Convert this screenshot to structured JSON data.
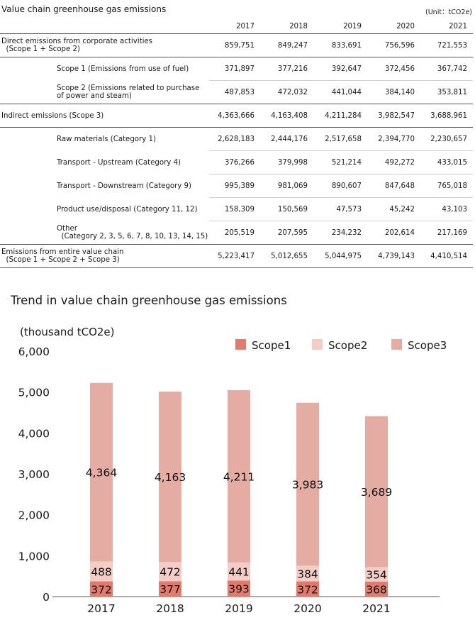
{
  "table": {
    "title": "Value chain greenhouse gas emissions",
    "unit": "(Unit：tCO2e)",
    "years": [
      "2017",
      "2018",
      "2019",
      "2020",
      "2021"
    ],
    "rows": [
      {
        "label_lines": [
          "Direct emissions from corporate activities",
          "  (Scope 1 + Scope 2)"
        ],
        "level": 0,
        "values": [
          "859,751",
          "849,247",
          "833,691",
          "756,596",
          "721,553"
        ]
      },
      {
        "label_lines": [
          "Scope 1 (Emissions from use of fuel)"
        ],
        "level": 1,
        "values": [
          "371,897",
          "377,216",
          "392,647",
          "372,456",
          "367,742"
        ]
      },
      {
        "label_lines": [
          "Scope 2 (Emissions related to purchase",
          "of power and steam)"
        ],
        "level": 1,
        "values": [
          "487,853",
          "472,032",
          "441,044",
          "384,140",
          "353,811"
        ]
      },
      {
        "label_lines": [
          "Indirect emissions (Scope 3)"
        ],
        "level": 0,
        "values": [
          "4,363,666",
          "4,163,408",
          "4,211,284",
          "3,982,547",
          "3,688,961"
        ]
      },
      {
        "label_lines": [
          "Raw materials (Category 1)"
        ],
        "level": 1,
        "values": [
          "2,628,183",
          "2,444,176",
          "2,517,658",
          "2,394,770",
          "2,230,657"
        ]
      },
      {
        "label_lines": [
          "Transport - Upstream (Category 4)"
        ],
        "level": 1,
        "values": [
          "376,266",
          "379,998",
          "521,214",
          "492,272",
          "433,015"
        ]
      },
      {
        "label_lines": [
          "Transport - Downstream (Category 9)"
        ],
        "level": 1,
        "values": [
          "995,389",
          "981,069",
          "890,607",
          "847,648",
          "765,018"
        ]
      },
      {
        "label_lines": [
          "Product use/disposal (Category 11, 12)"
        ],
        "level": 1,
        "values": [
          "158,309",
          "150,569",
          "47,573",
          "45,242",
          "43,103"
        ]
      },
      {
        "label_lines": [
          "Other",
          "  (Category 2, 3, 5, 6, 7, 8, 10, 13, 14, 15)"
        ],
        "level": 1,
        "values": [
          "205,519",
          "207,595",
          "234,232",
          "202,614",
          "217,169"
        ]
      },
      {
        "label_lines": [
          "Emissions from entire value chain",
          "  (Scope 1 + Scope 2 + Scope 3)"
        ],
        "level": 0,
        "values": [
          "5,223,417",
          "5,012,655",
          "5,044,975",
          "4,739,143",
          "4,410,514"
        ]
      }
    ]
  },
  "chart_data": {
    "type": "bar",
    "stacked": true,
    "title": "Trend in value chain greenhouse gas emissions",
    "ylabel": "(thousand tCO2e)",
    "ylim": [
      0,
      6000
    ],
    "yticks": [
      "0",
      "1,000",
      "2,000",
      "3,000",
      "4,000",
      "5,000",
      "6,000"
    ],
    "categories": [
      "2017",
      "2018",
      "2019",
      "2020",
      "2021"
    ],
    "legend_position": "top-right",
    "grid": false,
    "series": [
      {
        "name": "Scope1",
        "color": "#e27b6c",
        "values": [
          372,
          377,
          393,
          372,
          368
        ],
        "labels": [
          "372",
          "377",
          "393",
          "372",
          "368"
        ]
      },
      {
        "name": "Scope2",
        "color": "#f4cdc7",
        "values": [
          488,
          472,
          441,
          384,
          354
        ],
        "labels": [
          "488",
          "472",
          "441",
          "384",
          "354"
        ]
      },
      {
        "name": "Scope3",
        "color": "#e5aca4",
        "values": [
          4364,
          4163,
          4211,
          3983,
          3689
        ],
        "labels": [
          "4,364",
          "4,163",
          "4,211",
          "3,983",
          "3,689"
        ]
      }
    ]
  }
}
